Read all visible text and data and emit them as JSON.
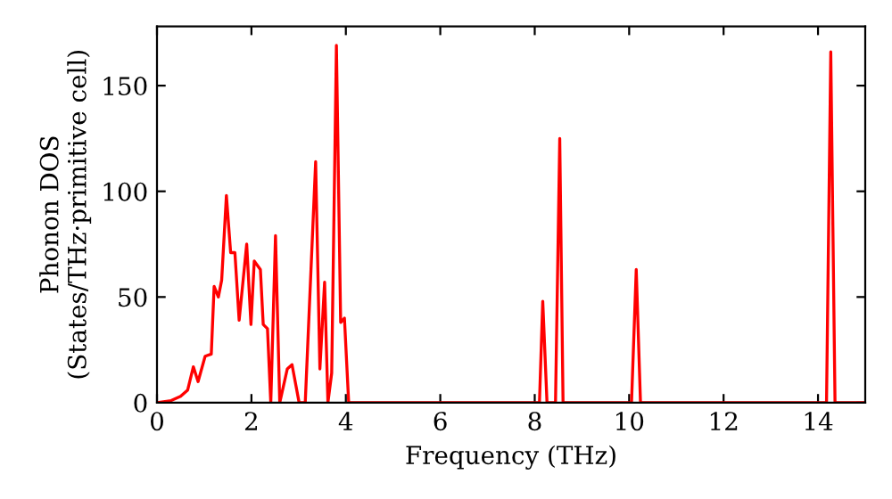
{
  "chart_data": {
    "type": "line",
    "xlabel": "Frequency (THz)",
    "ylabel": "Phonon DOS\n(States/THz·primitive cell)",
    "series": [
      {
        "color": "#ff0000",
        "x": [
          0,
          0.3,
          0.5,
          0.65,
          0.77,
          0.87,
          1.02,
          1.15,
          1.21,
          1.3,
          1.37,
          1.47,
          1.56,
          1.65,
          1.74,
          1.9,
          1.99,
          2.06,
          2.19,
          2.25,
          2.34,
          2.41,
          2.51,
          2.6,
          2.76,
          2.86,
          3.01,
          3.14,
          3.36,
          3.45,
          3.55,
          3.62,
          3.7,
          3.8,
          3.89,
          3.97,
          4.06,
          8.1,
          8.17,
          8.26,
          8.44,
          8.53,
          8.6,
          10.05,
          10.15,
          10.24,
          14.18,
          14.27,
          14.36,
          15
        ],
        "values": [
          0,
          1,
          3,
          6,
          17,
          10,
          22,
          23,
          55,
          50,
          58,
          98,
          71,
          71,
          39,
          75,
          37,
          67,
          63,
          37,
          35,
          0,
          79,
          0,
          16,
          18,
          0,
          0,
          114,
          16,
          57,
          0,
          14,
          169,
          38,
          40,
          0,
          0,
          48,
          0,
          0,
          125,
          0,
          0,
          63,
          0,
          0,
          166,
          0,
          0
        ]
      }
    ],
    "xlim": [
      0,
      15
    ],
    "ylim": [
      0,
      178
    ],
    "xticks": [
      0,
      2,
      4,
      6,
      8,
      10,
      12,
      14
    ],
    "yticks": [
      0,
      50,
      100,
      150
    ],
    "grid": false,
    "legend": false,
    "marker": "none",
    "line_style": "solid"
  }
}
